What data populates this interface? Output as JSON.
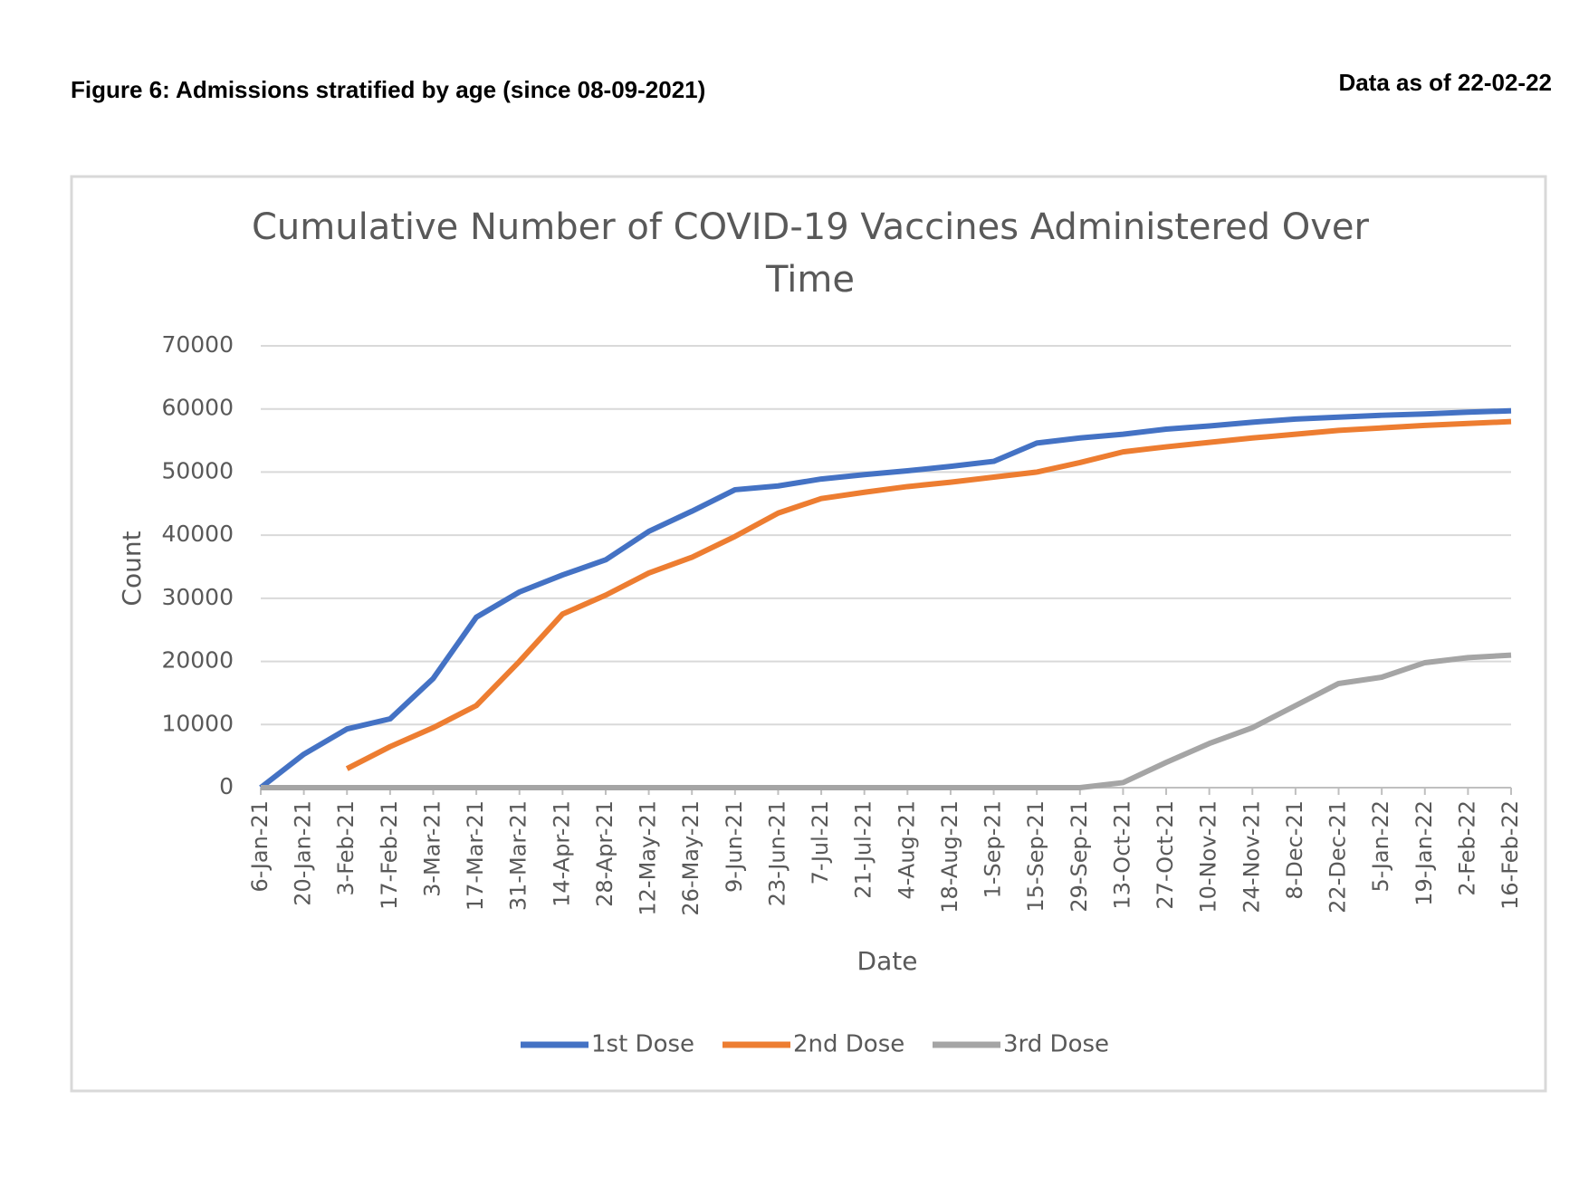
{
  "header": {
    "figure_label": "Figure 6: Admissions stratified by age (since 08-09-2021)",
    "data_note": "Data as of 22-02-22"
  },
  "chart_data": {
    "type": "line",
    "title": "Cumulative Number of COVID-19 Vaccines Administered Over Time",
    "x_label": "Date",
    "y_label": "Count",
    "categories": [
      "6-Jan-21",
      "20-Jan-21",
      "3-Feb-21",
      "17-Feb-21",
      "3-Mar-21",
      "17-Mar-21",
      "31-Mar-21",
      "14-Apr-21",
      "28-Apr-21",
      "12-May-21",
      "26-May-21",
      "9-Jun-21",
      "23-Jun-21",
      "7-Jul-21",
      "21-Jul-21",
      "4-Aug-21",
      "18-Aug-21",
      "1-Sep-21",
      "15-Sep-21",
      "29-Sep-21",
      "13-Oct-21",
      "27-Oct-21",
      "10-Nov-21",
      "24-Nov-21",
      "8-Dec-21",
      "22-Dec-21",
      "5-Jan-22",
      "19-Jan-22",
      "2-Feb-22",
      "16-Feb-22"
    ],
    "series": [
      {
        "name": "1st Dose",
        "color": "#4472c4",
        "values": [
          0,
          5300,
          9300,
          10900,
          17300,
          27000,
          31000,
          33700,
          36100,
          40600,
          43800,
          47200,
          47800,
          48900,
          49600,
          50200,
          50900,
          51700,
          54600,
          55400,
          56000,
          56800,
          57300,
          57900,
          58400,
          58700,
          59000,
          59200,
          59500,
          59700
        ]
      },
      {
        "name": "2nd Dose",
        "color": "#ed7d31",
        "values": [
          null,
          null,
          3000,
          6500,
          9500,
          13000,
          20000,
          27500,
          30500,
          34000,
          36500,
          39800,
          43500,
          45800,
          46800,
          47700,
          48400,
          49200,
          50000,
          51500,
          53200,
          54000,
          54700,
          55400,
          56000,
          56600,
          57000,
          57400,
          57700,
          58000
        ]
      },
      {
        "name": "3rd Dose",
        "color": "#a5a5a5",
        "values": [
          0,
          0,
          0,
          0,
          0,
          0,
          0,
          0,
          0,
          0,
          0,
          0,
          0,
          0,
          0,
          0,
          0,
          0,
          0,
          0,
          800,
          4000,
          7000,
          9500,
          13000,
          16500,
          17500,
          19800,
          20600,
          21000
        ]
      }
    ],
    "ylim": [
      0,
      70000
    ],
    "yticks": [
      0,
      10000,
      20000,
      30000,
      40000,
      50000,
      60000,
      70000
    ],
    "grid": true,
    "legend": "bottom"
  }
}
